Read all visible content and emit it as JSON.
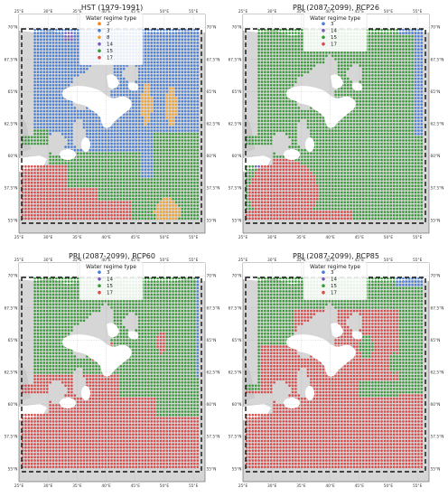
{
  "figure": {
    "legend_title": "Water regime type",
    "lon_ticks": [
      "25°E",
      "30°E",
      "35°E",
      "40°E",
      "45°E",
      "50°E",
      "55°E"
    ],
    "lat_ticks": [
      "70°N",
      "67.5°N",
      "65°N",
      "62.5°N",
      "60°N",
      "57.5°N",
      "55°N"
    ],
    "regime_colors": {
      "2": "#ff7f0e",
      "3": "#4a7fd4",
      "8": "#f0a030",
      "14": "#7b59b8",
      "15": "#3a9a3a",
      "17": "#d94a4a"
    },
    "land_color": "#d6d6d6",
    "water_color": "#ffffff"
  },
  "panels": [
    {
      "title": "HST (1979-1991)",
      "legend": [
        {
          "code": "2",
          "label": "2"
        },
        {
          "code": "3",
          "label": "3"
        },
        {
          "code": "8",
          "label": "8"
        },
        {
          "code": "14",
          "label": "14"
        },
        {
          "code": "15",
          "label": "15"
        },
        {
          "code": "17",
          "label": "17"
        }
      ]
    },
    {
      "title": "PRJ (2087-2099), RCP26",
      "legend": [
        {
          "code": "3",
          "label": "3"
        },
        {
          "code": "14",
          "label": "14"
        },
        {
          "code": "15",
          "label": "15"
        },
        {
          "code": "17",
          "label": "17"
        }
      ]
    },
    {
      "title": "PRJ (2087-2099), RCP60",
      "legend": [
        {
          "code": "3",
          "label": "3"
        },
        {
          "code": "14",
          "label": "14"
        },
        {
          "code": "15",
          "label": "15"
        },
        {
          "code": "17",
          "label": "17"
        }
      ]
    },
    {
      "title": "PRJ (2087-2099), RCP85",
      "legend": [
        {
          "code": "3",
          "label": "3"
        },
        {
          "code": "14",
          "label": "14"
        },
        {
          "code": "15",
          "label": "15"
        },
        {
          "code": "17",
          "label": "17"
        }
      ]
    }
  ]
}
